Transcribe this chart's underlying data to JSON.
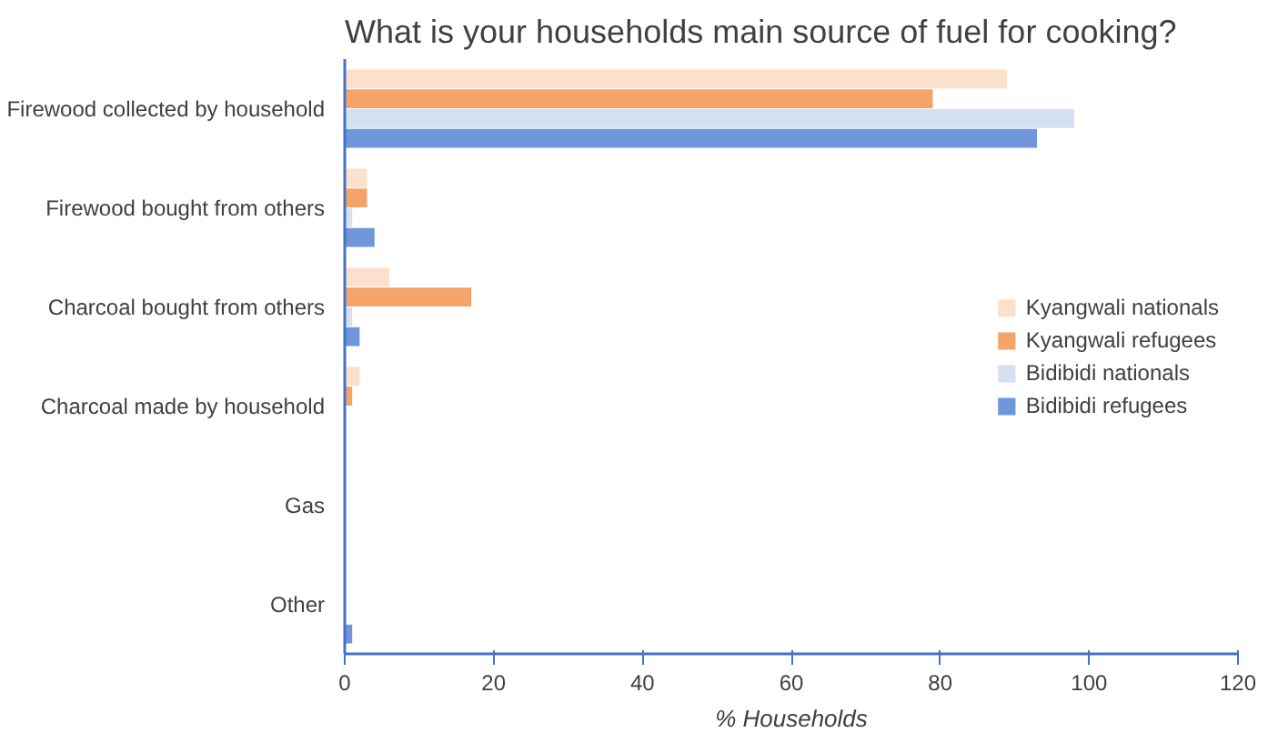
{
  "chart_data": {
    "type": "bar",
    "orientation": "horizontal",
    "title": "What is your households main source of fuel for cooking?",
    "xlabel": "% Households",
    "categories": [
      "Firewood collected by household",
      "Firewood bought from others",
      "Charcoal bought from others",
      "Charcoal made by household",
      "Gas",
      "Other"
    ],
    "series": [
      {
        "name": "Kyangwali nationals",
        "color": "#fbe0cc",
        "values": [
          89,
          3,
          6,
          2,
          0,
          0
        ]
      },
      {
        "name": "Kyangwali refugees",
        "color": "#f4a469",
        "values": [
          79,
          3,
          17,
          1,
          0,
          0
        ]
      },
      {
        "name": "Bidibidi nationals",
        "color": "#d5e0f3",
        "values": [
          98,
          1,
          1,
          0,
          0,
          0
        ]
      },
      {
        "name": "Bidibidi refugees",
        "color": "#6f96db",
        "values": [
          93,
          4,
          2,
          0,
          0,
          1
        ]
      }
    ],
    "xlim": [
      0,
      120
    ],
    "xticks": [
      0,
      20,
      40,
      60,
      80,
      100,
      120
    ],
    "grid": false,
    "legend": "right"
  }
}
